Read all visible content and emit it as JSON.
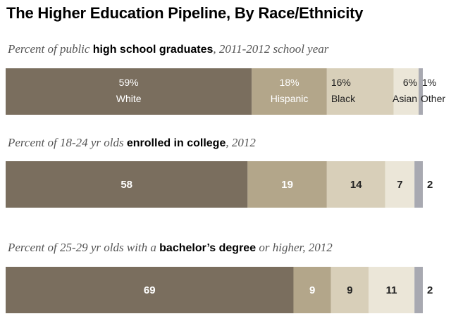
{
  "title": "The Higher Education Pipeline, By Race/Ethnicity",
  "chart_data": {
    "type": "bar",
    "orientation": "horizontal-stacked",
    "categories": [
      "White",
      "Hispanic",
      "Black",
      "Asian",
      "Other"
    ],
    "colors": [
      "#7a6e5e",
      "#b3a68a",
      "#d8cfb9",
      "#ebe6d8",
      "#a8a9b1"
    ],
    "xlim": [
      0,
      100
    ],
    "rows": [
      {
        "subtitle_pre": "Percent of public ",
        "subtitle_em": "high school graduates",
        "subtitle_post": ", 2011-2012 school year",
        "values": [
          59,
          18,
          16,
          6,
          1
        ],
        "labels": [
          "59%",
          "18%",
          "16%",
          "6%",
          "1%"
        ]
      },
      {
        "subtitle_pre": "Percent of 18-24 yr olds ",
        "subtitle_em": "enrolled in college",
        "subtitle_post": ", 2012",
        "values": [
          58,
          19,
          14,
          7,
          2
        ],
        "labels": [
          "58",
          "19",
          "14",
          "7",
          "2"
        ]
      },
      {
        "subtitle_pre": "Percent of 25-29 yr olds with a ",
        "subtitle_em": "bachelor’s degree",
        "subtitle_post": " or higher, 2012",
        "values": [
          69,
          9,
          9,
          11,
          2
        ],
        "labels": [
          "69",
          "9",
          "9",
          "11",
          "2"
        ]
      }
    ]
  }
}
